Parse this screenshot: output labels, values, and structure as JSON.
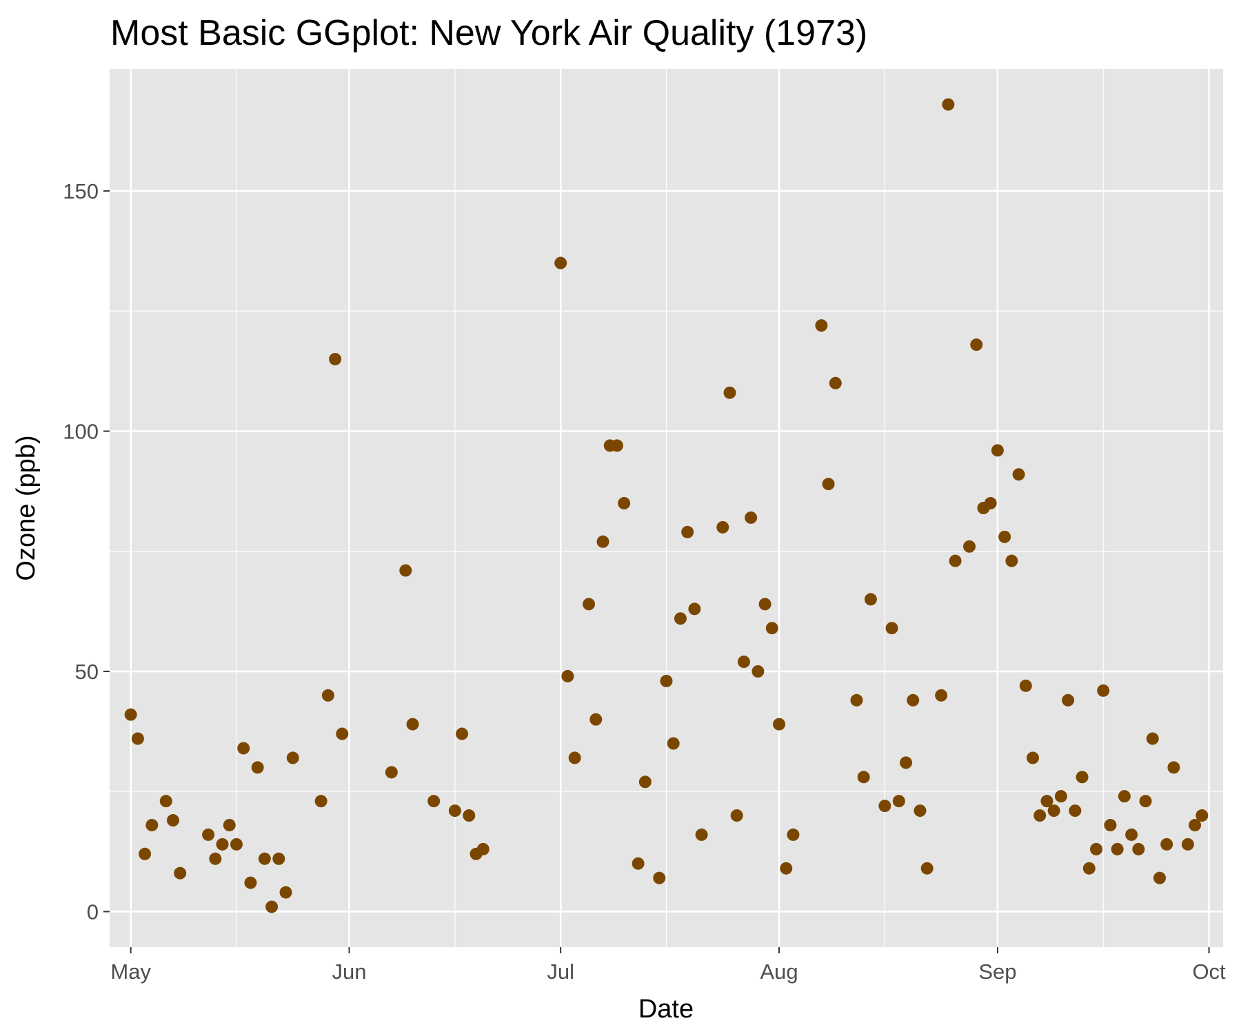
{
  "chart_data": {
    "type": "scatter",
    "title": "Most Basic GGplot: New York Air Quality (1973)",
    "xlabel": "Date",
    "ylabel": "Ozone (ppb)",
    "x_axis_kind": "date",
    "xlim": [
      "1973-04-28",
      "1973-10-03"
    ],
    "ylim": [
      -7.4,
      175.4
    ],
    "x_ticks": [
      {
        "date": "1973-05-01",
        "label": "May"
      },
      {
        "date": "1973-06-01",
        "label": "Jun"
      },
      {
        "date": "1973-07-01",
        "label": "Jul"
      },
      {
        "date": "1973-08-01",
        "label": "Aug"
      },
      {
        "date": "1973-09-01",
        "label": "Sep"
      },
      {
        "date": "1973-10-01",
        "label": "Oct"
      }
    ],
    "x_minor_ticks": [
      "1973-05-16",
      "1973-06-16",
      "1973-07-16",
      "1973-08-16",
      "1973-09-16"
    ],
    "y_ticks": [
      0,
      50,
      100,
      150
    ],
    "y_minor_ticks": [
      25,
      75,
      125
    ],
    "grid": true,
    "colors": {
      "point": "#7b4700",
      "panel": "#e5e5e5",
      "grid": "#ffffff",
      "tick_text": "#4d4d4d"
    },
    "series": [
      {
        "points": [
          [
            "1973-05-01",
            41
          ],
          [
            "1973-05-02",
            36
          ],
          [
            "1973-05-03",
            12
          ],
          [
            "1973-05-04",
            18
          ],
          [
            "1973-05-06",
            23
          ],
          [
            "1973-05-07",
            19
          ],
          [
            "1973-05-08",
            8
          ],
          [
            "1973-05-12",
            16
          ],
          [
            "1973-05-13",
            11
          ],
          [
            "1973-05-14",
            14
          ],
          [
            "1973-05-15",
            18
          ],
          [
            "1973-05-16",
            14
          ],
          [
            "1973-05-17",
            34
          ],
          [
            "1973-05-18",
            6
          ],
          [
            "1973-05-19",
            30
          ],
          [
            "1973-05-20",
            11
          ],
          [
            "1973-05-21",
            1
          ],
          [
            "1973-05-22",
            11
          ],
          [
            "1973-05-23",
            4
          ],
          [
            "1973-05-24",
            32
          ],
          [
            "1973-05-28",
            23
          ],
          [
            "1973-05-29",
            45
          ],
          [
            "1973-05-30",
            115
          ],
          [
            "1973-05-31",
            37
          ],
          [
            "1973-06-07",
            29
          ],
          [
            "1973-06-09",
            71
          ],
          [
            "1973-06-10",
            39
          ],
          [
            "1973-06-13",
            23
          ],
          [
            "1973-06-16",
            21
          ],
          [
            "1973-06-17",
            37
          ],
          [
            "1973-06-18",
            20
          ],
          [
            "1973-06-19",
            12
          ],
          [
            "1973-06-20",
            13
          ],
          [
            "1973-07-01",
            135
          ],
          [
            "1973-07-02",
            49
          ],
          [
            "1973-07-03",
            32
          ],
          [
            "1973-07-05",
            64
          ],
          [
            "1973-07-06",
            40
          ],
          [
            "1973-07-07",
            77
          ],
          [
            "1973-07-08",
            97
          ],
          [
            "1973-07-09",
            97
          ],
          [
            "1973-07-10",
            85
          ],
          [
            "1973-07-12",
            10
          ],
          [
            "1973-07-13",
            27
          ],
          [
            "1973-07-15",
            7
          ],
          [
            "1973-07-16",
            48
          ],
          [
            "1973-07-17",
            35
          ],
          [
            "1973-07-18",
            61
          ],
          [
            "1973-07-19",
            79
          ],
          [
            "1973-07-20",
            63
          ],
          [
            "1973-07-21",
            16
          ],
          [
            "1973-07-24",
            80
          ],
          [
            "1973-07-25",
            108
          ],
          [
            "1973-07-26",
            20
          ],
          [
            "1973-07-27",
            52
          ],
          [
            "1973-07-28",
            82
          ],
          [
            "1973-07-29",
            50
          ],
          [
            "1973-07-30",
            64
          ],
          [
            "1973-07-31",
            59
          ],
          [
            "1973-08-01",
            39
          ],
          [
            "1973-08-02",
            9
          ],
          [
            "1973-08-03",
            16
          ],
          [
            "1973-08-07",
            122
          ],
          [
            "1973-08-08",
            89
          ],
          [
            "1973-08-09",
            110
          ],
          [
            "1973-08-12",
            44
          ],
          [
            "1973-08-13",
            28
          ],
          [
            "1973-08-14",
            65
          ],
          [
            "1973-08-16",
            22
          ],
          [
            "1973-08-17",
            59
          ],
          [
            "1973-08-18",
            23
          ],
          [
            "1973-08-19",
            31
          ],
          [
            "1973-08-20",
            44
          ],
          [
            "1973-08-21",
            21
          ],
          [
            "1973-08-22",
            9
          ],
          [
            "1973-08-24",
            45
          ],
          [
            "1973-08-25",
            168
          ],
          [
            "1973-08-26",
            73
          ],
          [
            "1973-08-28",
            76
          ],
          [
            "1973-08-29",
            118
          ],
          [
            "1973-08-30",
            84
          ],
          [
            "1973-08-31",
            85
          ],
          [
            "1973-09-01",
            96
          ],
          [
            "1973-09-02",
            78
          ],
          [
            "1973-09-03",
            73
          ],
          [
            "1973-09-04",
            91
          ],
          [
            "1973-09-05",
            47
          ],
          [
            "1973-09-06",
            32
          ],
          [
            "1973-09-07",
            20
          ],
          [
            "1973-09-08",
            23
          ],
          [
            "1973-09-09",
            21
          ],
          [
            "1973-09-10",
            24
          ],
          [
            "1973-09-11",
            44
          ],
          [
            "1973-09-12",
            21
          ],
          [
            "1973-09-13",
            28
          ],
          [
            "1973-09-14",
            9
          ],
          [
            "1973-09-15",
            13
          ],
          [
            "1973-09-16",
            46
          ],
          [
            "1973-09-17",
            18
          ],
          [
            "1973-09-18",
            13
          ],
          [
            "1973-09-19",
            24
          ],
          [
            "1973-09-20",
            16
          ],
          [
            "1973-09-21",
            13
          ],
          [
            "1973-09-22",
            23
          ],
          [
            "1973-09-23",
            36
          ],
          [
            "1973-09-24",
            7
          ],
          [
            "1973-09-25",
            14
          ],
          [
            "1973-09-26",
            30
          ],
          [
            "1973-09-28",
            14
          ],
          [
            "1973-09-29",
            18
          ],
          [
            "1973-09-30",
            20
          ]
        ]
      }
    ]
  }
}
